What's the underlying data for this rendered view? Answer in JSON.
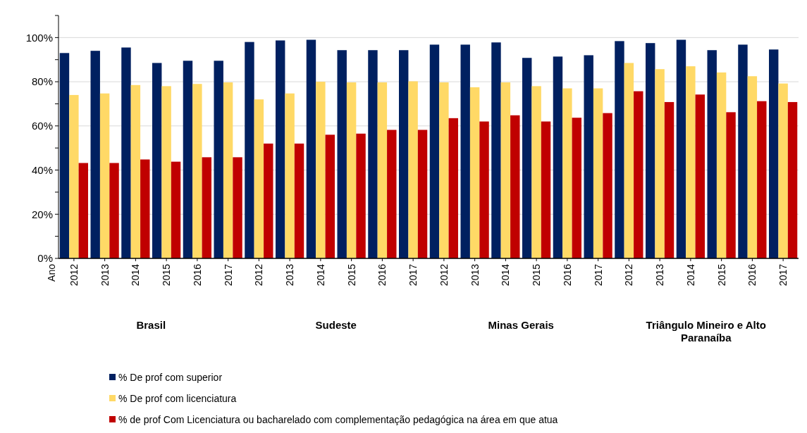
{
  "chart_data": {
    "type": "bar",
    "categories": [
      "2012",
      "2013",
      "2014",
      "2015",
      "2016",
      "2017",
      "2012",
      "2013",
      "2014",
      "2015",
      "2016",
      "2017",
      "2012",
      "2013",
      "2014",
      "2015",
      "2016",
      "2017",
      "2012",
      "2013",
      "2014",
      "2015",
      "2016",
      "2017"
    ],
    "series": [
      {
        "name": "% De prof com superior",
        "color": "#002060",
        "values": [
          93,
          94,
          95.5,
          88.5,
          89.5,
          89.5,
          98,
          98.7,
          99,
          94.3,
          94.3,
          94.3,
          96.8,
          96.8,
          97.8,
          90.8,
          91.4,
          92,
          98.4,
          97.5,
          99,
          94.3,
          96.8,
          94.6
        ]
      },
      {
        "name": "% De prof com licenciatura",
        "color": "#ffd966",
        "values": [
          74,
          74.7,
          78.5,
          78,
          79,
          79.7,
          72,
          74.7,
          80,
          79.7,
          79.7,
          80.2,
          79.7,
          77.5,
          79.7,
          78,
          77,
          77,
          88.5,
          85.7,
          87,
          84.2,
          82.5,
          79.2
        ]
      },
      {
        "name": "% de prof Com Licenciatura ou bacharelado com complementação pedagógica na área em que atua",
        "color": "#c00000",
        "values": [
          43.2,
          43.2,
          44.8,
          43.8,
          45.8,
          45.8,
          52,
          52,
          56,
          56.5,
          58.2,
          58.2,
          63.5,
          62,
          64.8,
          62,
          63.7,
          65.8,
          75.7,
          70.8,
          74.2,
          66.2,
          71.2,
          70.8
        ]
      }
    ],
    "annotations": [
      "Ano",
      "Brasil",
      "Sudeste",
      "Minas Gerais",
      "Triângulo Mineiro e Alto Paranaíba"
    ],
    "ylim": [
      0,
      110
    ],
    "yticks": [
      {
        "value": 0,
        "label": "0%"
      },
      {
        "value": 10,
        "label": null
      },
      {
        "value": 20,
        "label": "20%"
      },
      {
        "value": 30,
        "label": null
      },
      {
        "value": 40,
        "label": "40%"
      },
      {
        "value": 50,
        "label": null
      },
      {
        "value": 60,
        "label": "60%"
      },
      {
        "value": 70,
        "label": null
      },
      {
        "value": 80,
        "label": "80%"
      },
      {
        "value": 90,
        "label": null
      },
      {
        "value": 100,
        "label": "100%"
      },
      {
        "value": 110,
        "label": null
      }
    ],
    "grid": "y",
    "legend": "bottom"
  }
}
